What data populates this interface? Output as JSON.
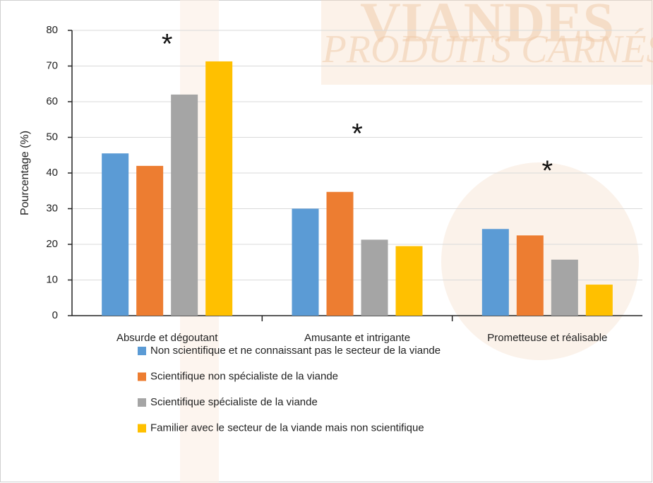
{
  "chart_data": {
    "type": "bar",
    "watermark": [
      "VIANDES",
      "PRODUITS CARNÉS"
    ],
    "y_label": "Pourcentage (%)",
    "categories": [
      "Absurde et dégoutant",
      "Amusante et intrigante",
      "Prometteuse et réalisable"
    ],
    "series": [
      {
        "name": "Non scientifique et ne connaissant pas le secteur de la viande",
        "color": "#5b9bd5",
        "values": [
          45.5,
          30,
          24.3
        ]
      },
      {
        "name": "Scientifique non spécialiste de la viande",
        "color": "#ed7d31",
        "values": [
          42,
          34.7,
          22.5
        ]
      },
      {
        "name": "Scientifique spécialiste de la viande",
        "color": "#a5a5a5",
        "values": [
          62,
          21.3,
          15.7
        ]
      },
      {
        "name": "Familier avec le secteur de la viande mais non scientifique",
        "color": "#ffc000",
        "values": [
          71.3,
          19.5,
          8.7
        ]
      }
    ],
    "annotations": [
      "*",
      "*",
      "*"
    ],
    "ylim": [
      0,
      80
    ],
    "yticks": [
      0,
      10,
      20,
      30,
      40,
      50,
      60,
      70,
      80
    ],
    "grid": true
  }
}
